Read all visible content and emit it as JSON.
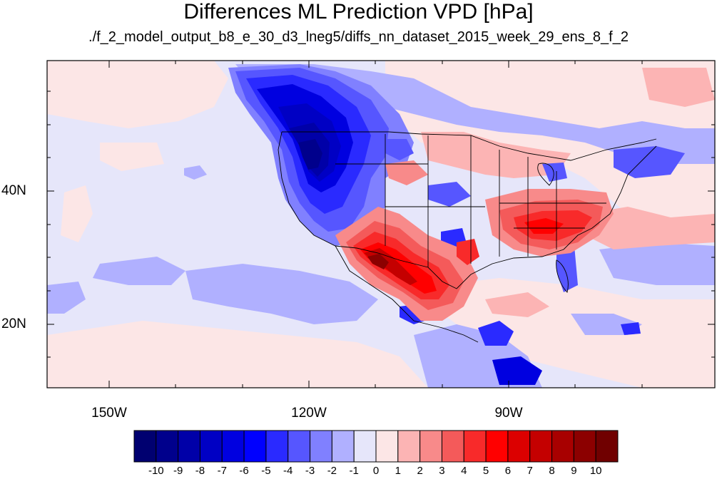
{
  "title": "Differences ML Prediction VPD [hPa]",
  "subtitle": "./f_2_model_output_b8_e_30_d3_lneg5/diffs_nn_dataset_2015_week_29_ens_8_f_2",
  "lat_labels": [
    "40N",
    "20N"
  ],
  "lon_labels": [
    "150W",
    "120W",
    "90W"
  ],
  "colorbar": {
    "labels": [
      "-10",
      "-9",
      "-8",
      "-7",
      "-6",
      "-5",
      "-4",
      "-3",
      "-2",
      "-1",
      "0",
      "1",
      "2",
      "3",
      "4",
      "5",
      "6",
      "7",
      "8",
      "9",
      "10"
    ],
    "colors": [
      "#000070",
      "#00008c",
      "#0000a8",
      "#0000c4",
      "#0000e0",
      "#0000ff",
      "#2a2aff",
      "#5656ff",
      "#8080ff",
      "#b0b0ff",
      "#e6e6fa",
      "#fce6e6",
      "#fcb4b4",
      "#f88a8a",
      "#f45a5a",
      "#f82a2a",
      "#ff0000",
      "#dc0000",
      "#c40000",
      "#a80000",
      "#8c0000",
      "#700000"
    ]
  },
  "chart_data": {
    "type": "heatmap",
    "title": "Differences ML Prediction VPD [hPa]",
    "subtitle": "./f_2_model_output_b8_e_30_d3_lneg5/diffs_nn_dataset_2015_week_29_ens_8_f_2",
    "x_axis_ticks": [
      "150W",
      "120W",
      "90W"
    ],
    "y_axis_ticks": [
      "40N",
      "20N"
    ],
    "colorbar_range": [
      -10,
      10
    ],
    "colorbar_levels": [
      -10,
      -9,
      -8,
      -7,
      -6,
      -5,
      -4,
      -3,
      -2,
      -1,
      0,
      1,
      2,
      3,
      4,
      5,
      6,
      7,
      8,
      9,
      10
    ]
  }
}
